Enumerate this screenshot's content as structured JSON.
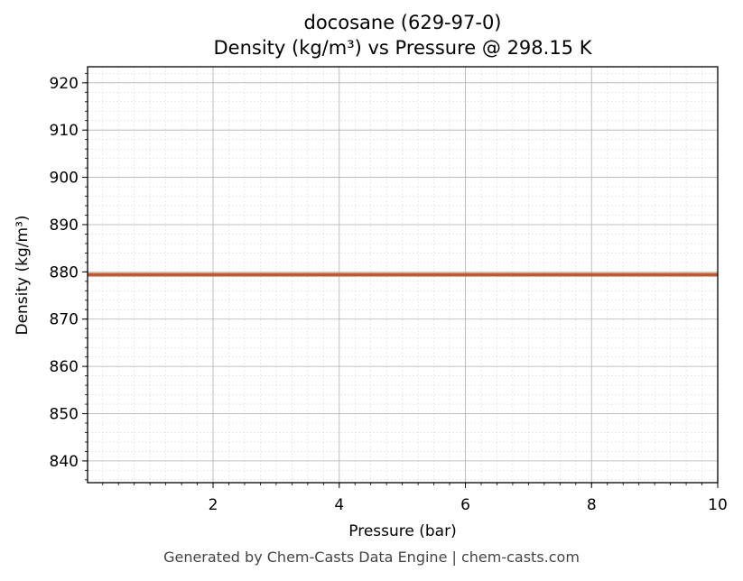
{
  "chart_data": {
    "type": "line",
    "title": "docosane (629-97-0)",
    "subtitle": "Density (kg/m³) vs Pressure @ 298.15 K",
    "xlabel": "Pressure (bar)",
    "ylabel": "Density (kg/m³)",
    "xlim": [
      0.01,
      10
    ],
    "ylim": [
      835.4,
      923.4
    ],
    "x_ticks": [
      2,
      4,
      6,
      8,
      10
    ],
    "y_ticks": [
      840,
      850,
      860,
      870,
      880,
      890,
      900,
      910,
      920
    ],
    "grid": true,
    "series": [
      {
        "color": "#c0582f",
        "x": [
          0.01,
          1,
          2,
          3,
          4,
          5,
          6,
          7,
          8,
          9,
          10
        ],
        "y": [
          879.4,
          879.4,
          879.4,
          879.4,
          879.4,
          879.4,
          879.4,
          879.4,
          879.4,
          879.4,
          879.4
        ]
      }
    ]
  },
  "footer": "Generated by Chem-Casts Data Engine | chem-casts.com"
}
